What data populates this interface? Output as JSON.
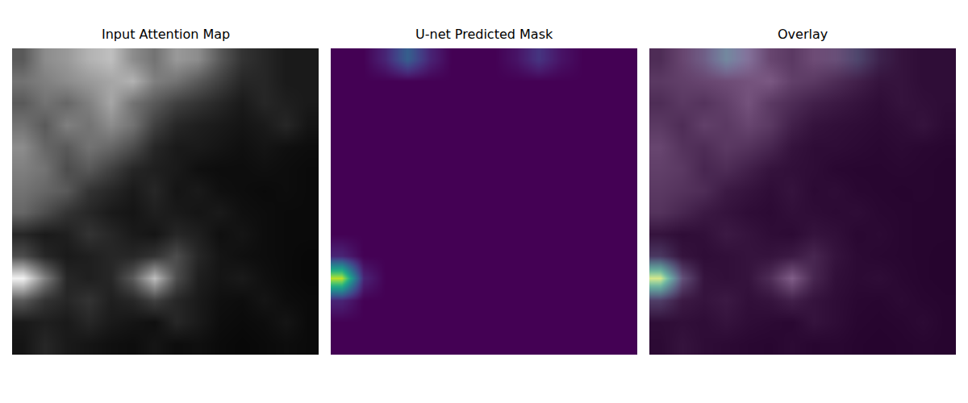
{
  "chart_data": [
    {
      "type": "heatmap",
      "title": "Input Attention Map",
      "color": "gray",
      "tick_labels": false,
      "zlim": [
        0,
        1
      ],
      "z": [
        [
          0.35,
          0.55,
          0.6,
          0.7,
          0.75,
          0.55,
          0.45,
          0.6,
          0.55,
          0.35,
          0.2,
          0.15,
          0.1,
          0.1
        ],
        [
          0.45,
          0.5,
          0.55,
          0.6,
          0.65,
          0.7,
          0.5,
          0.45,
          0.35,
          0.25,
          0.15,
          0.15,
          0.1,
          0.1
        ],
        [
          0.35,
          0.45,
          0.4,
          0.5,
          0.65,
          0.45,
          0.35,
          0.25,
          0.2,
          0.15,
          0.1,
          0.15,
          0.12,
          0.1
        ],
        [
          0.45,
          0.35,
          0.5,
          0.45,
          0.55,
          0.45,
          0.25,
          0.15,
          0.12,
          0.1,
          0.08,
          0.1,
          0.15,
          0.08
        ],
        [
          0.55,
          0.4,
          0.35,
          0.45,
          0.4,
          0.3,
          0.15,
          0.1,
          0.1,
          0.08,
          0.06,
          0.08,
          0.06,
          0.05
        ],
        [
          0.5,
          0.45,
          0.3,
          0.35,
          0.25,
          0.15,
          0.12,
          0.1,
          0.06,
          0.05,
          0.05,
          0.06,
          0.05,
          0.04
        ],
        [
          0.45,
          0.4,
          0.35,
          0.2,
          0.15,
          0.1,
          0.15,
          0.08,
          0.1,
          0.06,
          0.05,
          0.04,
          0.05,
          0.04
        ],
        [
          0.4,
          0.3,
          0.2,
          0.15,
          0.1,
          0.08,
          0.12,
          0.1,
          0.08,
          0.1,
          0.06,
          0.05,
          0.04,
          0.04
        ],
        [
          0.15,
          0.1,
          0.12,
          0.2,
          0.15,
          0.1,
          0.08,
          0.15,
          0.12,
          0.06,
          0.08,
          0.05,
          0.04,
          0.04
        ],
        [
          0.3,
          0.15,
          0.1,
          0.12,
          0.15,
          0.15,
          0.2,
          0.3,
          0.15,
          0.08,
          0.06,
          0.05,
          0.04,
          0.03
        ],
        [
          0.95,
          0.5,
          0.15,
          0.12,
          0.15,
          0.35,
          0.75,
          0.3,
          0.12,
          0.08,
          0.1,
          0.06,
          0.04,
          0.03
        ],
        [
          0.35,
          0.2,
          0.15,
          0.2,
          0.12,
          0.15,
          0.25,
          0.15,
          0.1,
          0.06,
          0.05,
          0.08,
          0.05,
          0.04
        ],
        [
          0.1,
          0.12,
          0.1,
          0.15,
          0.1,
          0.08,
          0.06,
          0.15,
          0.1,
          0.05,
          0.04,
          0.05,
          0.08,
          0.04
        ],
        [
          0.08,
          0.15,
          0.1,
          0.08,
          0.06,
          0.05,
          0.08,
          0.05,
          0.06,
          0.04,
          0.03,
          0.04,
          0.05,
          0.04
        ]
      ]
    },
    {
      "type": "heatmap",
      "title": "U-net Predicted Mask",
      "color": "viridis",
      "tick_labels": false,
      "zlim": [
        0,
        1
      ],
      "z": [
        [
          0,
          0,
          0.1,
          0.3,
          0.1,
          0,
          0,
          0,
          0.05,
          0.15,
          0.05,
          0,
          0,
          0
        ],
        [
          0,
          0,
          0,
          0,
          0,
          0,
          0,
          0,
          0,
          0,
          0,
          0,
          0,
          0
        ],
        [
          0,
          0,
          0,
          0,
          0,
          0,
          0,
          0,
          0,
          0,
          0,
          0,
          0,
          0
        ],
        [
          0,
          0,
          0,
          0,
          0,
          0,
          0,
          0,
          0,
          0,
          0,
          0,
          0,
          0
        ],
        [
          0,
          0,
          0,
          0,
          0,
          0,
          0,
          0,
          0,
          0,
          0,
          0,
          0,
          0
        ],
        [
          0,
          0,
          0,
          0,
          0,
          0,
          0,
          0,
          0,
          0,
          0,
          0,
          0,
          0
        ],
        [
          0,
          0,
          0,
          0,
          0,
          0,
          0,
          0,
          0,
          0,
          0,
          0,
          0,
          0
        ],
        [
          0,
          0,
          0,
          0,
          0,
          0,
          0,
          0,
          0,
          0,
          0,
          0,
          0,
          0
        ],
        [
          0,
          0,
          0,
          0,
          0,
          0,
          0,
          0,
          0,
          0,
          0,
          0,
          0,
          0
        ],
        [
          0.1,
          0,
          0,
          0,
          0,
          0,
          0,
          0,
          0,
          0,
          0,
          0,
          0,
          0
        ],
        [
          0.9,
          0.1,
          0,
          0,
          0,
          0,
          0,
          0,
          0,
          0,
          0,
          0,
          0,
          0
        ],
        [
          0.1,
          0,
          0,
          0,
          0,
          0,
          0,
          0,
          0,
          0,
          0,
          0,
          0,
          0
        ],
        [
          0,
          0,
          0,
          0,
          0,
          0,
          0,
          0,
          0,
          0,
          0,
          0,
          0,
          0
        ],
        [
          0,
          0,
          0,
          0,
          0,
          0,
          0,
          0,
          0,
          0,
          0,
          0,
          0,
          0
        ]
      ]
    },
    {
      "type": "overlay",
      "title": "Overlay",
      "tick_labels": false
    }
  ]
}
